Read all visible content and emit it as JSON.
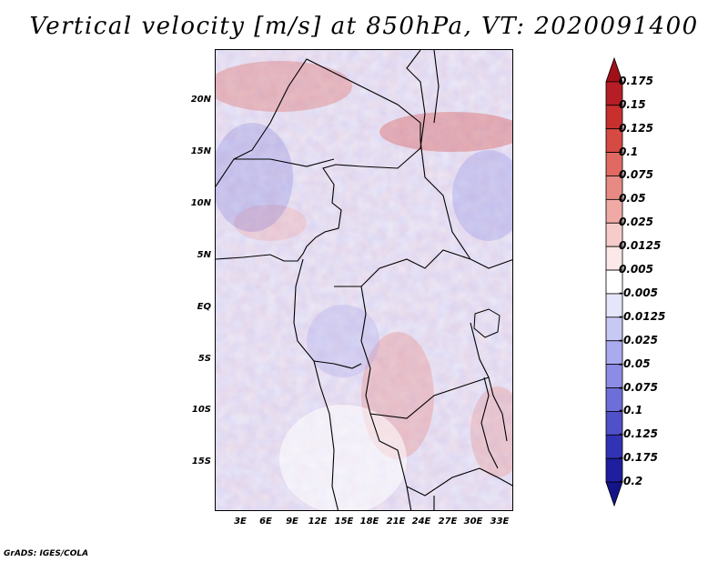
{
  "title": "Vertical velocity [m/s] at 850hPa, VT: 2020091400",
  "credit": "GrADS: IGES/COLA",
  "map": {
    "lat_labels": [
      "20N",
      "15N",
      "10N",
      "5N",
      "EQ",
      "5S",
      "10S",
      "15S"
    ],
    "lon_labels": [
      "3E",
      "6E",
      "9E",
      "12E",
      "15E",
      "18E",
      "21E",
      "24E",
      "27E",
      "30E",
      "33E"
    ]
  },
  "colorbar": {
    "labels": [
      "0.175",
      "0.15",
      "0.125",
      "0.1",
      "0.075",
      "0.05",
      "0.025",
      "0.0125",
      "0.005",
      "-0.005",
      "-0.0125",
      "-0.025",
      "-0.05",
      "-0.075",
      "-0.1",
      "-0.125",
      "-0.175",
      "-0.2"
    ],
    "colors": [
      "#a01018",
      "#b41e24",
      "#c8302e",
      "#d64a44",
      "#e06a62",
      "#e88a84",
      "#f0aaa6",
      "#f6ccca",
      "#fbe8e8",
      "#ffffff",
      "#e6e6fa",
      "#c8c8f4",
      "#aaaaee",
      "#8c8ce4",
      "#6e6ed8",
      "#5050c8",
      "#3232b4",
      "#1e1e9e",
      "#14148a"
    ]
  }
}
